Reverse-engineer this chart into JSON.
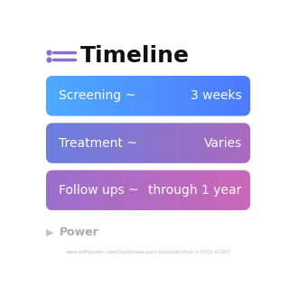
{
  "title": "Timeline",
  "background_color": "#ffffff",
  "rows": [
    {
      "left_label": "Screening ~",
      "right_label": "3 weeks",
      "grad_left": "#4daaff",
      "grad_right": "#4d7aff"
    },
    {
      "left_label": "Treatment ~",
      "right_label": "Varies",
      "grad_left": "#6a7fe0",
      "grad_right": "#aa6bbf"
    },
    {
      "left_label": "Follow ups ~",
      "right_label": "through 1 year",
      "grad_left": "#9b6fcc",
      "grad_right": "#cc68b8"
    }
  ],
  "footer_text": "Power",
  "url_text": "www.withpower.com/trial/phase-pain-postoperative-3-2022-e1807",
  "icon_color": "#8b6fcc",
  "title_fontsize": 18,
  "label_fontsize": 10,
  "footer_color": "#aaaaaa"
}
